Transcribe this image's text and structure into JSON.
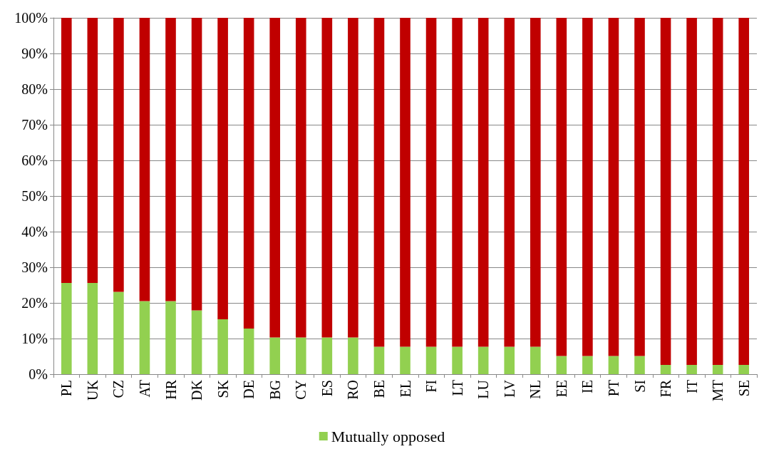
{
  "chart_data": {
    "type": "bar",
    "stacked": true,
    "categories": [
      "PL",
      "UK",
      "CZ",
      "AT",
      "HR",
      "DK",
      "SK",
      "DE",
      "BG",
      "CY",
      "ES",
      "RO",
      "BE",
      "EL",
      "FI",
      "LT",
      "LU",
      "LV",
      "NL",
      "EE",
      "IE",
      "PT",
      "SI",
      "FR",
      "IT",
      "MT",
      "SE"
    ],
    "series": [
      {
        "name": "Mutually opposed",
        "color": "#92d050",
        "values": [
          25.6,
          25.6,
          23.1,
          20.5,
          20.5,
          17.9,
          15.4,
          12.8,
          10.3,
          10.3,
          10.3,
          10.3,
          7.7,
          7.7,
          7.7,
          7.7,
          7.7,
          7.7,
          7.7,
          5.1,
          5.1,
          5.1,
          5.1,
          2.6,
          2.6,
          2.6,
          2.6
        ]
      },
      {
        "color": "#c00000",
        "values": [
          74.4,
          74.4,
          76.9,
          79.5,
          79.5,
          82.1,
          84.6,
          87.2,
          89.7,
          89.7,
          89.7,
          89.7,
          92.3,
          92.3,
          92.3,
          92.3,
          92.3,
          92.3,
          92.3,
          94.9,
          94.9,
          94.9,
          94.9,
          97.4,
          97.4,
          97.4,
          97.4
        ]
      }
    ],
    "ylim": [
      0,
      100
    ],
    "yticks": [
      {
        "value": 0,
        "label": "0%"
      },
      {
        "value": 10,
        "label": "10%"
      },
      {
        "value": 20,
        "label": "20%"
      },
      {
        "value": 30,
        "label": "30%"
      },
      {
        "value": 40,
        "label": "40%"
      },
      {
        "value": 50,
        "label": "50%"
      },
      {
        "value": 60,
        "label": "60%"
      },
      {
        "value": 70,
        "label": "70%"
      },
      {
        "value": 80,
        "label": "80%"
      },
      {
        "value": 90,
        "label": "90%"
      },
      {
        "value": 100,
        "label": "100%"
      }
    ],
    "grid": "y",
    "legend": "bottom"
  }
}
